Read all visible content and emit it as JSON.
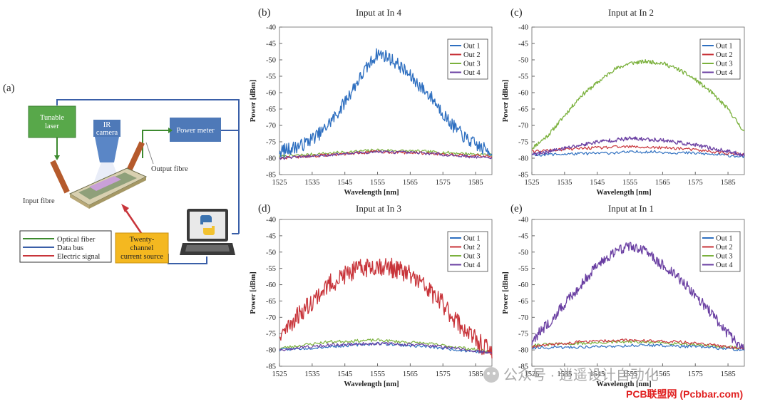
{
  "colors": {
    "out1": "#2e6fc0",
    "out2": "#c8343a",
    "out3": "#7bb13d",
    "out4": "#6a3fa2",
    "optical": "#3d8a2f",
    "bus": "#3a5fa8",
    "electric": "#c8343a",
    "laser_box": "#58a84a",
    "power_box": "#4e79b8",
    "source_box": "#f4b820",
    "watermark_red": "#e02020"
  },
  "diagram": {
    "label": "(a)",
    "tunable_laser": "Tunable\nlaser",
    "ir_camera": "IR\ncamera",
    "power_meter": "Power meter",
    "output_fibre": "Output fibre",
    "input_fibre": "Input fibre",
    "current_source": "Twenty-\nchannel\ncurrent source",
    "legend": [
      {
        "label": "Optical fiber",
        "color": "optical"
      },
      {
        "label": "Data bus",
        "color": "bus"
      },
      {
        "label": "Electric signal",
        "color": "electric"
      }
    ]
  },
  "watermark": {
    "line1": "公众号 · 逍遥设计自动化",
    "line2": "PCB联盟网 (Pcbbar.com)"
  },
  "chart_data": [
    {
      "panel": "(b)",
      "type": "line",
      "title": "Input at In 4",
      "xlabel": "Wavelength [nm]",
      "ylabel": "Power [dBm]",
      "xlim": [
        1525,
        1590
      ],
      "ylim": [
        -85,
        -40
      ],
      "xticks": [
        1525,
        1535,
        1545,
        1555,
        1565,
        1575,
        1585
      ],
      "yticks": [
        -40,
        -45,
        -50,
        -55,
        -60,
        -65,
        -70,
        -75,
        -80,
        -85
      ],
      "legend_position": "top-right",
      "noise": {
        "series": [
          0
        ],
        "amp": 2.0,
        "seed": 7
      },
      "series": [
        {
          "name": "Out 1",
          "color": "out1",
          "x": [
            1525,
            1532,
            1538,
            1543,
            1548,
            1552,
            1555,
            1558,
            1562,
            1567,
            1572,
            1577,
            1582,
            1587,
            1590
          ],
          "y": [
            -78,
            -76,
            -72,
            -66,
            -58,
            -52,
            -48,
            -49,
            -52,
            -57,
            -62,
            -69,
            -74,
            -77,
            -78
          ]
        },
        {
          "name": "Out 2",
          "color": "out2",
          "x": [
            1525,
            1540,
            1555,
            1570,
            1590
          ],
          "y": [
            -80,
            -79,
            -78,
            -78.5,
            -79.5
          ]
        },
        {
          "name": "Out 3",
          "color": "out3",
          "x": [
            1525,
            1540,
            1555,
            1570,
            1590
          ],
          "y": [
            -79.5,
            -78.5,
            -77.5,
            -78,
            -79
          ]
        },
        {
          "name": "Out 4",
          "color": "out4",
          "x": [
            1525,
            1540,
            1555,
            1570,
            1590
          ],
          "y": [
            -80,
            -79,
            -78,
            -78.5,
            -80
          ]
        }
      ]
    },
    {
      "panel": "(c)",
      "type": "line",
      "title": "Input at In 2",
      "xlabel": "Wavelength [nm]",
      "ylabel": "Power [dBm]",
      "xlim": [
        1525,
        1590
      ],
      "ylim": [
        -85,
        -40
      ],
      "xticks": [
        1525,
        1535,
        1545,
        1555,
        1565,
        1575,
        1585
      ],
      "yticks": [
        -40,
        -45,
        -50,
        -55,
        -60,
        -65,
        -70,
        -75,
        -80,
        -85
      ],
      "legend_position": "top-right",
      "noise": {
        "series": [
          2,
          3
        ],
        "amp": 0.6,
        "seed": 11
      },
      "series": [
        {
          "name": "Out 1",
          "color": "out1",
          "x": [
            1525,
            1545,
            1560,
            1575,
            1590
          ],
          "y": [
            -79,
            -78.5,
            -78,
            -78.5,
            -79.5
          ]
        },
        {
          "name": "Out 2",
          "color": "out2",
          "x": [
            1525,
            1540,
            1555,
            1570,
            1590
          ],
          "y": [
            -78,
            -77,
            -76.5,
            -77,
            -79
          ]
        },
        {
          "name": "Out 3",
          "color": "out3",
          "x": [
            1525,
            1530,
            1535,
            1540,
            1545,
            1550,
            1555,
            1560,
            1565,
            1570,
            1575,
            1580,
            1585,
            1590
          ],
          "y": [
            -77,
            -73,
            -67,
            -61,
            -57,
            -53,
            -51,
            -50.5,
            -51,
            -53,
            -56,
            -60,
            -65,
            -72
          ]
        },
        {
          "name": "Out 4",
          "color": "out4",
          "x": [
            1525,
            1535,
            1545,
            1555,
            1565,
            1575,
            1590
          ],
          "y": [
            -79,
            -77,
            -75,
            -74,
            -74.5,
            -76,
            -79
          ]
        }
      ]
    },
    {
      "panel": "(d)",
      "type": "line",
      "title": "Input at In 3",
      "xlabel": "Wavelength [nm]",
      "ylabel": "Power [dBm]",
      "xlim": [
        1525,
        1590
      ],
      "ylim": [
        -85,
        -40
      ],
      "xticks": [
        1525,
        1535,
        1545,
        1555,
        1565,
        1575,
        1585
      ],
      "yticks": [
        -40,
        -45,
        -50,
        -55,
        -60,
        -65,
        -70,
        -75,
        -80,
        -85
      ],
      "legend_position": "top-right",
      "noise": {
        "series": [
          1
        ],
        "amp": 3.0,
        "seed": 23
      },
      "series": [
        {
          "name": "Out 1",
          "color": "out1",
          "x": [
            1525,
            1540,
            1555,
            1570,
            1590
          ],
          "y": [
            -80,
            -79,
            -78,
            -79,
            -81
          ]
        },
        {
          "name": "Out 2",
          "color": "out2",
          "x": [
            1525,
            1530,
            1535,
            1540,
            1545,
            1550,
            1555,
            1560,
            1565,
            1570,
            1575,
            1580,
            1585,
            1590
          ],
          "y": [
            -76,
            -70,
            -65,
            -60,
            -57,
            -55,
            -54,
            -55,
            -57,
            -61,
            -66,
            -72,
            -77,
            -81
          ]
        },
        {
          "name": "Out 3",
          "color": "out3",
          "x": [
            1525,
            1540,
            1555,
            1570,
            1590
          ],
          "y": [
            -79.5,
            -77.5,
            -77,
            -78,
            -80.5
          ]
        },
        {
          "name": "Out 4",
          "color": "out4",
          "x": [
            1525,
            1540,
            1555,
            1570,
            1590
          ],
          "y": [
            -80,
            -78.5,
            -78,
            -78.5,
            -81
          ]
        }
      ]
    },
    {
      "panel": "(e)",
      "type": "line",
      "title": "Input at In 1",
      "xlabel": "Wavelength [nm]",
      "ylabel": "Power [dBm]",
      "xlim": [
        1525,
        1590
      ],
      "ylim": [
        -85,
        -40
      ],
      "xticks": [
        1525,
        1535,
        1545,
        1555,
        1565,
        1575,
        1585
      ],
      "yticks": [
        -40,
        -45,
        -50,
        -55,
        -60,
        -65,
        -70,
        -75,
        -80,
        -85
      ],
      "legend_position": "top-right",
      "noise": {
        "series": [
          3
        ],
        "amp": 1.6,
        "seed": 31
      },
      "series": [
        {
          "name": "Out 1",
          "color": "out1",
          "x": [
            1525,
            1545,
            1560,
            1575,
            1590
          ],
          "y": [
            -79.5,
            -79,
            -78.5,
            -79,
            -80
          ]
        },
        {
          "name": "Out 2",
          "color": "out2",
          "x": [
            1525,
            1540,
            1555,
            1570,
            1590
          ],
          "y": [
            -79,
            -77.5,
            -77,
            -77.5,
            -79.5
          ]
        },
        {
          "name": "Out 3",
          "color": "out3",
          "x": [
            1525,
            1540,
            1555,
            1570,
            1590
          ],
          "y": [
            -78.5,
            -78,
            -77.5,
            -78,
            -79.5
          ]
        },
        {
          "name": "Out 4",
          "color": "out4",
          "x": [
            1525,
            1530,
            1535,
            1540,
            1545,
            1550,
            1555,
            1560,
            1565,
            1570,
            1575,
            1580,
            1585,
            1590
          ],
          "y": [
            -77,
            -72,
            -66,
            -60,
            -54,
            -50,
            -48,
            -50,
            -54,
            -58,
            -63,
            -69,
            -75,
            -80
          ]
        }
      ]
    }
  ]
}
